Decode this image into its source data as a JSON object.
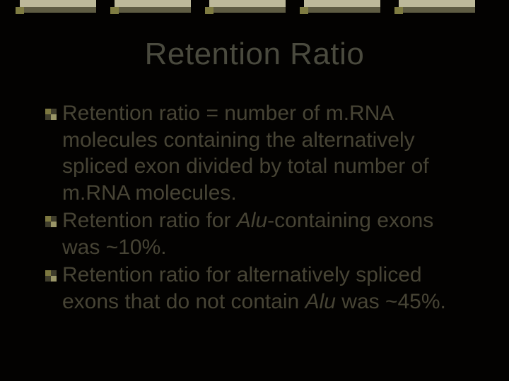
{
  "slide": {
    "title": "Retention Ratio",
    "bullets": [
      {
        "segments": [
          {
            "text": "Retention ratio = number of m.RNA molecules containing the alternatively spliced exon divided by total number of m.RNA molecules.",
            "italic": false
          }
        ]
      },
      {
        "segments": [
          {
            "text": "Retention ratio for ",
            "italic": false
          },
          {
            "text": "Alu",
            "italic": true
          },
          {
            "text": "-containing exons was ~10%.",
            "italic": false
          }
        ]
      },
      {
        "segments": [
          {
            "text": " Retention ratio for alternatively spliced exons that do not contain ",
            "italic": false
          },
          {
            "text": "Alu",
            "italic": true
          },
          {
            "text": " was ~45%.",
            "italic": false
          }
        ]
      }
    ]
  },
  "style": {
    "background_color": "#030201",
    "title_color": "#4a4a3e",
    "title_fontsize": 44,
    "body_color": "#474435",
    "body_fontsize": 30,
    "band_colors": {
      "upper": "#bdb99a",
      "lower": "#5f5c43",
      "accent": "#7f7c42"
    },
    "bullet_colors": {
      "q1": "#7d7840",
      "q2": "#3f3d2c",
      "q3": "#3f3d2c",
      "q4": "#9a9668"
    },
    "band_segment_count": 5
  }
}
